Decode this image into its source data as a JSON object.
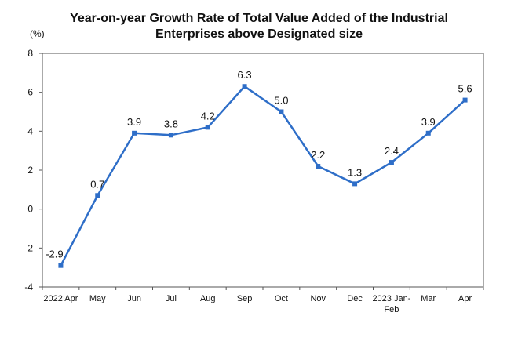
{
  "chart_data": {
    "type": "line",
    "title_line1": "Year-on-year Growth Rate of Total Value Added of the Industrial",
    "title_line2": "Enterprises above Designated size",
    "ylabel": "(%)",
    "ylim": [
      -4,
      8
    ],
    "yticks": [
      -4,
      -2,
      0,
      2,
      4,
      6,
      8
    ],
    "grid": false,
    "categories": [
      [
        "2022 Apr"
      ],
      [
        "May"
      ],
      [
        "Jun"
      ],
      [
        "Jul"
      ],
      [
        "Aug"
      ],
      [
        "Sep"
      ],
      [
        "Oct"
      ],
      [
        "Nov"
      ],
      [
        "Dec"
      ],
      [
        "2023 Jan-",
        "Feb"
      ],
      [
        "Mar"
      ],
      [
        "Apr"
      ]
    ],
    "values": [
      -2.9,
      0.7,
      3.9,
      3.8,
      4.2,
      6.3,
      5.0,
      2.2,
      1.3,
      2.4,
      3.9,
      5.6
    ],
    "data_labels": [
      "-2.9",
      "0.7",
      "3.9",
      "3.8",
      "4.2",
      "6.3",
      "5.0",
      "2.2",
      "1.3",
      "2.4",
      "3.9",
      "5.6"
    ],
    "line_color": "#2E6EC8",
    "marker_color": "#2E6EC8",
    "axis_color": "#555555"
  }
}
